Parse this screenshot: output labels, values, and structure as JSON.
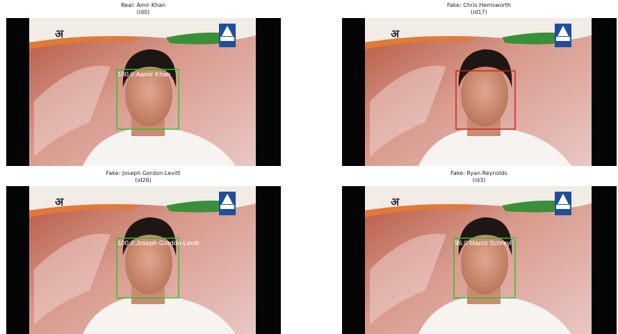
{
  "panels": [
    {
      "title": "Real: Amir Khan",
      "subtitle": "(id0)",
      "box_label": "100.0:Aamir Khan",
      "box_color": "#2bc42b"
    },
    {
      "title": "Fake: Chris Hemsworth",
      "subtitle": "(id17)",
      "box_label": null,
      "box_color": "#cc1f1f"
    },
    {
      "title": "Fake: Joseph Gordon-Levitt",
      "subtitle": "(id26)",
      "box_label": "100.0:Joseph Gordon-Levitt",
      "box_color": "#2bc42b"
    },
    {
      "title": "Fake: Ryan Reynolds",
      "subtitle": "(id3)",
      "box_label": "96.0:Marco Schreyl",
      "box_color": "#2bc42b"
    }
  ]
}
